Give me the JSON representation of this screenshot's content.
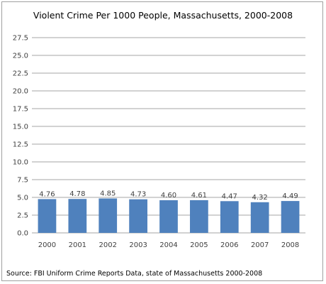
{
  "chart_data": {
    "type": "bar",
    "title": "Violent Crime Per 1000 People, Massachusetts, 2000-2008",
    "categories": [
      "2000",
      "2001",
      "2002",
      "2003",
      "2004",
      "2005",
      "2006",
      "2007",
      "2008"
    ],
    "values": [
      4.76,
      4.78,
      4.85,
      4.73,
      4.6,
      4.61,
      4.47,
      4.32,
      4.49
    ],
    "value_labels": [
      "4.76",
      "4.78",
      "4.85",
      "4.73",
      "4.60",
      "4.61",
      "4.47",
      "4.32",
      "4.49"
    ],
    "ylim": [
      0,
      27.5
    ],
    "yticks": [
      "0.0",
      "2.5",
      "5.0",
      "7.5",
      "10.0",
      "12.5",
      "15.0",
      "17.5",
      "20.0",
      "22.5",
      "25.0",
      "27.5"
    ],
    "grid": true,
    "bar_color": "#4f81bd",
    "grid_color": "#a6a6a6",
    "source": "Source: FBI Uniform Crime Reports Data, state of Massachusetts 2000-2008"
  }
}
